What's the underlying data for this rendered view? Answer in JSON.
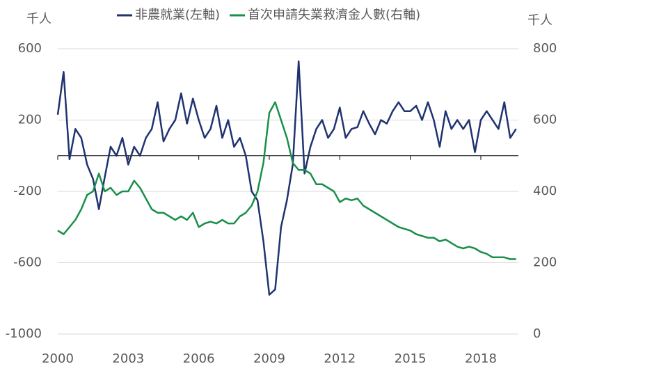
{
  "chart_data": {
    "type": "line",
    "ylabel": "千人",
    "y2label": "千人",
    "x": [
      2000,
      2000.25,
      2000.5,
      2000.75,
      2001,
      2001.25,
      2001.5,
      2001.75,
      2002,
      2002.25,
      2002.5,
      2002.75,
      2003,
      2003.25,
      2003.5,
      2003.75,
      2004,
      2004.25,
      2004.5,
      2004.75,
      2005,
      2005.25,
      2005.5,
      2005.75,
      2006,
      2006.25,
      2006.5,
      2006.75,
      2007,
      2007.25,
      2007.5,
      2007.75,
      2008,
      2008.25,
      2008.5,
      2008.75,
      2009,
      2009.25,
      2009.5,
      2009.75,
      2010,
      2010.25,
      2010.5,
      2010.75,
      2011,
      2011.25,
      2011.5,
      2011.75,
      2012,
      2012.25,
      2012.5,
      2012.75,
      2013,
      2013.25,
      2013.5,
      2013.75,
      2014,
      2014.25,
      2014.5,
      2014.75,
      2015,
      2015.25,
      2015.5,
      2015.75,
      2016,
      2016.25,
      2016.5,
      2016.75,
      2017,
      2017.25,
      2017.5,
      2017.75,
      2018,
      2018.25,
      2018.5,
      2018.75,
      2019,
      2019.25,
      2019.5
    ],
    "series": [
      {
        "name": "非農就業(左軸)",
        "color": "#1f3370",
        "values": [
          230,
          470,
          -20,
          150,
          100,
          -50,
          -130,
          -300,
          -120,
          50,
          0,
          100,
          -50,
          50,
          0,
          100,
          150,
          300,
          80,
          150,
          200,
          350,
          180,
          320,
          200,
          100,
          150,
          280,
          100,
          200,
          50,
          100,
          0,
          -200,
          -250,
          -480,
          -780,
          -750,
          -400,
          -250,
          -50,
          530,
          -100,
          50,
          150,
          200,
          100,
          150,
          270,
          100,
          150,
          160,
          250,
          180,
          120,
          200,
          180,
          250,
          300,
          250,
          250,
          280,
          200,
          300,
          200,
          50,
          250,
          150,
          200,
          150,
          200,
          20,
          200,
          250,
          200,
          150,
          300,
          100,
          150
        ]
      },
      {
        "name": "首次申請失業救濟金人數(右軸)",
        "color": "#1a8f4a",
        "axis": "y2",
        "values": [
          290,
          280,
          300,
          320,
          350,
          390,
          400,
          450,
          400,
          410,
          390,
          400,
          400,
          430,
          410,
          380,
          350,
          340,
          340,
          330,
          320,
          330,
          320,
          340,
          300,
          310,
          315,
          310,
          320,
          310,
          310,
          330,
          340,
          360,
          400,
          480,
          620,
          650,
          600,
          550,
          480,
          460,
          460,
          450,
          420,
          420,
          410,
          400,
          370,
          380,
          375,
          380,
          360,
          350,
          340,
          330,
          320,
          310,
          300,
          295,
          290,
          280,
          275,
          270,
          270,
          260,
          265,
          255,
          245,
          240,
          245,
          240,
          230,
          225,
          215,
          215,
          215,
          210,
          210
        ]
      }
    ],
    "xlim": [
      2000,
      2019.6
    ],
    "xticks": [
      2000,
      2003,
      2006,
      2009,
      2012,
      2015,
      2018
    ],
    "ylim": [
      -1000,
      600
    ],
    "yticks": [
      -1000,
      -600,
      -200,
      200,
      600
    ],
    "y2lim": [
      0,
      800
    ],
    "y2ticks": [
      0,
      200,
      400,
      600,
      800
    ],
    "grid": true
  }
}
